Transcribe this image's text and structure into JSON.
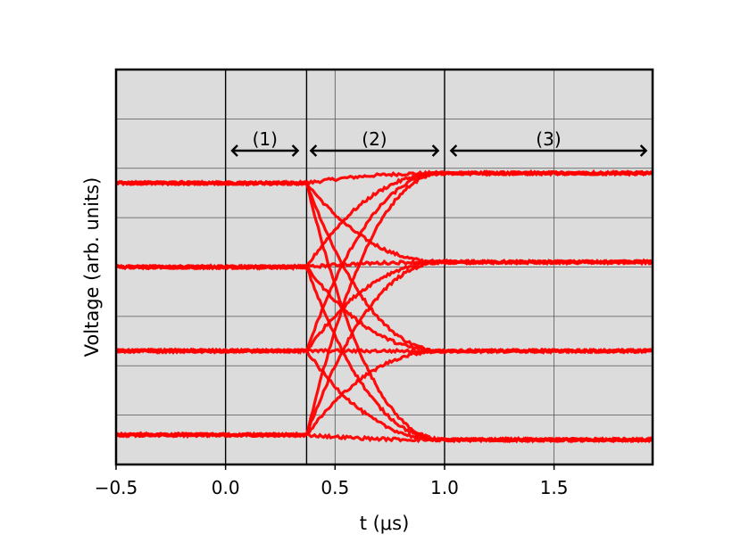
{
  "chart_data": {
    "type": "line",
    "title": "",
    "xlabel": "t (μs)",
    "ylabel": "Voltage (arb. units)",
    "xlim": [
      -0.5,
      1.95
    ],
    "ylim": [
      0,
      8
    ],
    "x_ticks": [
      -0.5,
      0.0,
      0.5,
      1.0,
      1.5
    ],
    "x_tick_labels": [
      "−0.5",
      "0.0",
      "0.5",
      "1.0",
      "1.5"
    ],
    "y_gridlines": [
      1,
      2,
      3,
      4,
      5,
      6,
      7
    ],
    "y_tick_labels_shown": false,
    "grid": true,
    "background_color": "#dcdcdc",
    "series_color": "#ff0000",
    "initial_levels": [
      5.7,
      4.0,
      2.3,
      0.6
    ],
    "final_levels": [
      5.9,
      4.1,
      2.3,
      0.5
    ],
    "transition": {
      "start": 0.37,
      "end": 1.0
    },
    "dividers": [
      0.0,
      0.37,
      1.0
    ],
    "regions": [
      {
        "label": "(1)",
        "from": 0.03,
        "to": 0.33
      },
      {
        "label": "(2)",
        "from": 0.39,
        "to": 0.97
      },
      {
        "label": "(3)",
        "from": 1.03,
        "to": 1.92
      }
    ]
  }
}
